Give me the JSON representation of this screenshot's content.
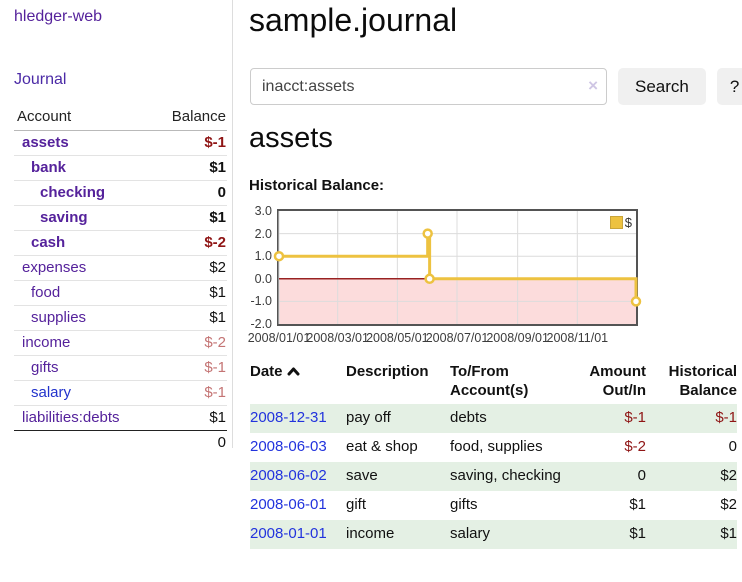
{
  "app": {
    "title": "hledger-web",
    "journal_link": "Journal"
  },
  "sidebar": {
    "headers": [
      "Account",
      "Balance"
    ],
    "accounts": [
      {
        "name": "assets",
        "balance": "$-1",
        "indent": 1,
        "in_acct": true,
        "link_style": "purple"
      },
      {
        "name": "bank",
        "balance": "$1",
        "indent": 2,
        "in_acct": true,
        "link_style": "purple"
      },
      {
        "name": "checking",
        "balance": "0",
        "indent": 3,
        "in_acct": true,
        "link_style": "purple"
      },
      {
        "name": "saving",
        "balance": "$1",
        "indent": 3,
        "in_acct": true,
        "link_style": "purple"
      },
      {
        "name": "cash",
        "balance": "$-2",
        "indent": 2,
        "in_acct": true,
        "link_style": "purple"
      },
      {
        "name": "expenses",
        "balance": "$2",
        "indent": 1,
        "in_acct": false,
        "link_style": "purple"
      },
      {
        "name": "food",
        "balance": "$1",
        "indent": 2,
        "in_acct": false,
        "link_style": "purple"
      },
      {
        "name": "supplies",
        "balance": "$1",
        "indent": 2,
        "in_acct": false,
        "link_style": "purple"
      },
      {
        "name": "income",
        "balance": "$-2",
        "indent": 1,
        "in_acct": false,
        "link_style": "purple"
      },
      {
        "name": "gifts",
        "balance": "$-1",
        "indent": 2,
        "in_acct": false,
        "link_style": "purple"
      },
      {
        "name": "salary",
        "balance": "$-1",
        "indent": 2,
        "in_acct": false,
        "link_style": "blue"
      },
      {
        "name": "liabilities:debts",
        "balance": "$1",
        "indent": 1,
        "in_acct": false,
        "link_style": "purple"
      }
    ],
    "total": "0"
  },
  "main": {
    "title": "sample.journal",
    "search": {
      "value": "inacct:assets",
      "clear_icon": "×",
      "button_label": "Search",
      "help_label": "?"
    },
    "account_heading": "assets",
    "chart_title": "Historical Balance:"
  },
  "chart_data": {
    "type": "line",
    "title": "Historical Balance",
    "step": true,
    "series": [
      {
        "name": "$",
        "color": "#edc240"
      }
    ],
    "points": [
      {
        "date": "2008-01-01",
        "value": 1
      },
      {
        "date": "2008-06-01",
        "value": 2
      },
      {
        "date": "2008-06-03",
        "value": 0
      },
      {
        "date": "2008-12-31",
        "value": -1
      }
    ],
    "xlim": [
      "2008-01-01",
      "2008-12-31"
    ],
    "ylim": [
      -2,
      3
    ],
    "y_ticks": [
      "3.0",
      "2.0",
      "1.0",
      "0.0",
      "-1.0",
      "-2.0"
    ],
    "x_ticks": [
      {
        "date": "2008-01-01",
        "label": "2008/01/01"
      },
      {
        "date": "2008-03-01",
        "label": "2008/03/01"
      },
      {
        "date": "2008-05-01",
        "label": "2008/05/01"
      },
      {
        "date": "2008-07-01",
        "label": "2008/07/01"
      },
      {
        "date": "2008-09-01",
        "label": "2008/09/01"
      },
      {
        "date": "2008-11-01",
        "label": "2008/11/01"
      }
    ],
    "grid": true,
    "legend_position": "top-right",
    "negative_region_color": "#fcdcdc",
    "zero_line_color": "#992222",
    "gridline_color": "#dcdcdc"
  },
  "register": {
    "headers": [
      [
        "Date",
        ""
      ],
      [
        "Description",
        ""
      ],
      [
        "To/From",
        "Account(s)"
      ],
      [
        "Amount",
        "Out/In"
      ],
      [
        "Historical",
        "Balance"
      ]
    ],
    "rows": [
      {
        "date": "2008-12-31",
        "description": "pay off",
        "accounts": "debts",
        "amount": "$-1",
        "balance": "$-1"
      },
      {
        "date": "2008-06-03",
        "description": "eat & shop",
        "accounts": "food, supplies",
        "amount": "$-2",
        "balance": "0"
      },
      {
        "date": "2008-06-02",
        "description": "save",
        "accounts": "saving, checking",
        "amount": "0",
        "balance": "$2"
      },
      {
        "date": "2008-06-01",
        "description": "gift",
        "accounts": "gifts",
        "amount": "$1",
        "balance": "$2"
      },
      {
        "date": "2008-01-01",
        "description": "income",
        "accounts": "salary",
        "amount": "$1",
        "balance": "$1"
      }
    ]
  }
}
